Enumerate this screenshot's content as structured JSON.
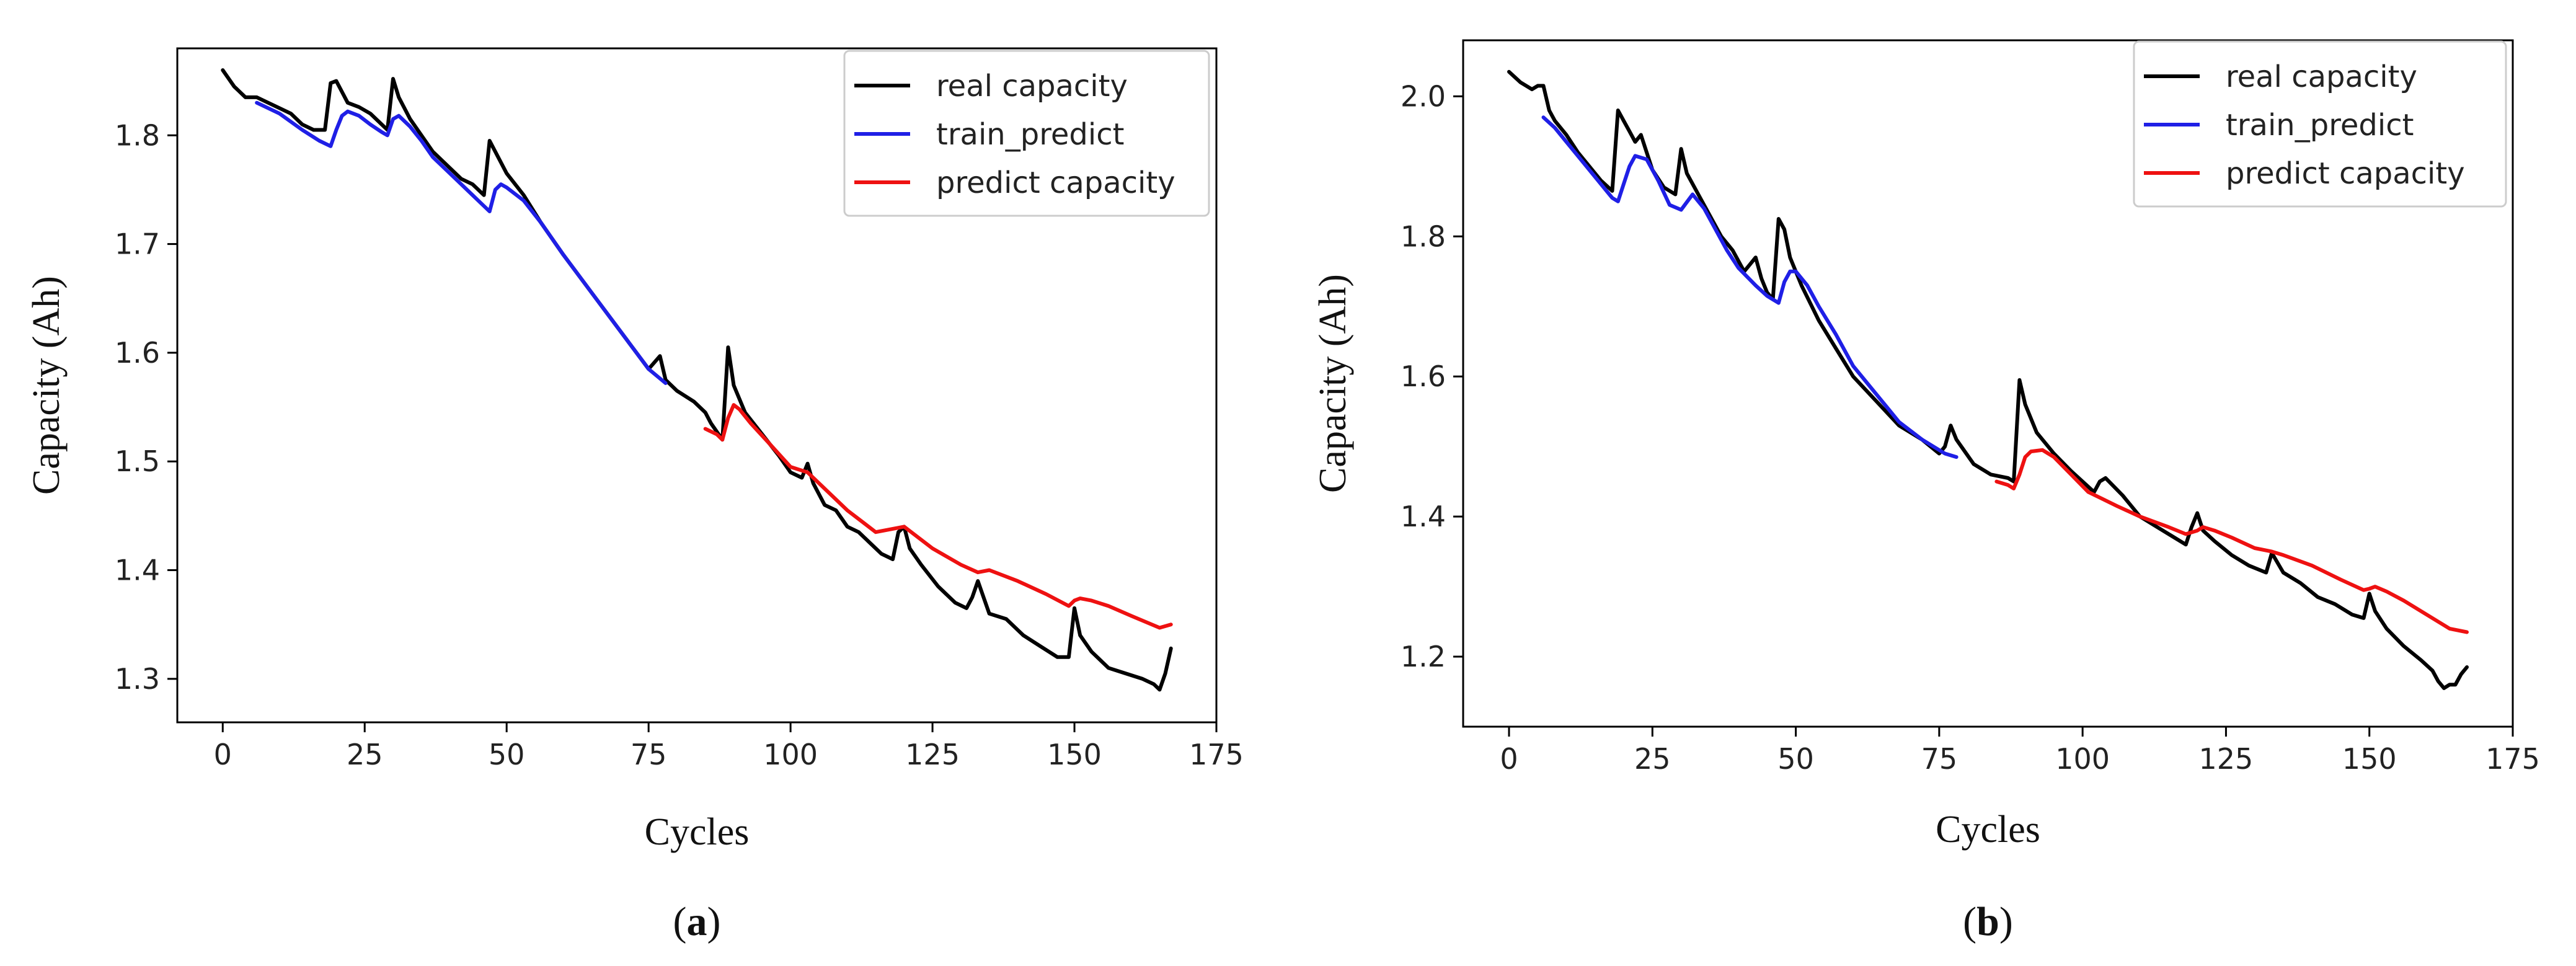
{
  "chart_data": [
    {
      "type": "line",
      "panel": "a",
      "caption_open": "(",
      "caption_letter": "a",
      "caption_close": ")",
      "xlabel": "Cycles",
      "ylabel": "Capacity (Ah)",
      "xlim": [
        -8,
        175
      ],
      "ylim": [
        1.26,
        1.88
      ],
      "xticks": [
        0,
        25,
        50,
        75,
        100,
        125,
        150,
        175
      ],
      "yticks": [
        1.3,
        1.4,
        1.5,
        1.6,
        1.7,
        1.8
      ],
      "ytick_labels": [
        "1.3",
        "1.4",
        "1.5",
        "1.6",
        "1.7",
        "1.8"
      ],
      "legend_position": "top-right",
      "series": [
        {
          "name": "real capacity",
          "color": "#000000",
          "x": [
            0,
            2,
            4,
            6,
            8,
            10,
            12,
            14,
            16,
            18,
            19,
            20,
            21,
            22,
            24,
            26,
            28,
            29,
            30,
            31,
            33,
            35,
            37,
            40,
            42,
            44,
            46,
            47,
            48,
            50,
            53,
            56,
            60,
            65,
            70,
            75,
            77,
            78,
            80,
            83,
            85,
            86,
            88,
            89,
            90,
            92,
            95,
            98,
            100,
            102,
            103,
            104,
            106,
            108,
            110,
            112,
            114,
            116,
            118,
            119,
            120,
            121,
            123,
            126,
            129,
            131,
            132,
            133,
            135,
            138,
            141,
            144,
            147,
            149,
            150,
            151,
            153,
            156,
            159,
            162,
            164,
            165,
            166,
            167
          ],
          "values": [
            1.86,
            1.845,
            1.835,
            1.835,
            1.83,
            1.825,
            1.82,
            1.81,
            1.805,
            1.805,
            1.848,
            1.85,
            1.84,
            1.83,
            1.826,
            1.82,
            1.81,
            1.805,
            1.852,
            1.835,
            1.815,
            1.8,
            1.785,
            1.77,
            1.76,
            1.755,
            1.745,
            1.795,
            1.785,
            1.765,
            1.745,
            1.72,
            1.69,
            1.655,
            1.62,
            1.585,
            1.597,
            1.575,
            1.565,
            1.555,
            1.545,
            1.535,
            1.52,
            1.605,
            1.57,
            1.545,
            1.525,
            1.505,
            1.49,
            1.485,
            1.498,
            1.48,
            1.46,
            1.455,
            1.44,
            1.435,
            1.425,
            1.415,
            1.41,
            1.435,
            1.44,
            1.42,
            1.405,
            1.385,
            1.37,
            1.365,
            1.375,
            1.39,
            1.36,
            1.355,
            1.34,
            1.33,
            1.32,
            1.32,
            1.365,
            1.34,
            1.325,
            1.31,
            1.305,
            1.3,
            1.295,
            1.29,
            1.305,
            1.328
          ]
        },
        {
          "name": "train_predict",
          "color": "#1f1fe6",
          "x": [
            6,
            10,
            14,
            17,
            19,
            20,
            21,
            22,
            24,
            26,
            28,
            29,
            30,
            31,
            33,
            35,
            37,
            40,
            43,
            45,
            47,
            48,
            49,
            50,
            53,
            56,
            60,
            65,
            70,
            75,
            78
          ],
          "values": [
            1.83,
            1.82,
            1.805,
            1.795,
            1.79,
            1.805,
            1.818,
            1.822,
            1.818,
            1.81,
            1.803,
            1.8,
            1.815,
            1.818,
            1.808,
            1.795,
            1.78,
            1.765,
            1.75,
            1.74,
            1.73,
            1.75,
            1.755,
            1.752,
            1.74,
            1.72,
            1.69,
            1.655,
            1.62,
            1.585,
            1.572
          ]
        },
        {
          "name": "predict capacity",
          "color": "#ee1111",
          "x": [
            85,
            87,
            88,
            89,
            90,
            91,
            93,
            96,
            100,
            103,
            106,
            110,
            115,
            120,
            121,
            125,
            130,
            133,
            135,
            140,
            145,
            149,
            150,
            151,
            153,
            156,
            160,
            165,
            167
          ],
          "values": [
            1.53,
            1.525,
            1.52,
            1.54,
            1.552,
            1.548,
            1.535,
            1.518,
            1.495,
            1.49,
            1.475,
            1.455,
            1.435,
            1.44,
            1.436,
            1.42,
            1.405,
            1.398,
            1.4,
            1.39,
            1.378,
            1.367,
            1.372,
            1.374,
            1.372,
            1.367,
            1.358,
            1.347,
            1.35
          ]
        }
      ]
    },
    {
      "type": "line",
      "panel": "b",
      "caption_open": "(",
      "caption_letter": "b",
      "caption_close": ")",
      "xlabel": "Cycles",
      "ylabel": "Capacity (Ah)",
      "xlim": [
        -8,
        175
      ],
      "ylim": [
        1.1,
        2.08
      ],
      "xticks": [
        0,
        25,
        50,
        75,
        100,
        125,
        150,
        175
      ],
      "yticks": [
        1.2,
        1.4,
        1.6,
        1.8,
        2.0
      ],
      "ytick_labels": [
        "1.2",
        "1.4",
        "1.6",
        "1.8",
        "2.0"
      ],
      "legend_position": "top-right",
      "series": [
        {
          "name": "real capacity",
          "color": "#000000",
          "x": [
            0,
            2,
            3,
            4,
            5,
            6,
            7,
            8,
            10,
            12,
            14,
            16,
            18,
            19,
            20,
            21,
            22,
            23,
            24,
            25,
            27,
            29,
            30,
            31,
            33,
            35,
            37,
            39,
            41,
            42,
            43,
            44,
            45,
            46,
            47,
            48,
            49,
            51,
            54,
            57,
            60,
            64,
            68,
            72,
            75,
            76,
            77,
            78,
            81,
            84,
            87,
            88,
            89,
            90,
            92,
            95,
            98,
            100,
            102,
            103,
            104,
            107,
            110,
            113,
            116,
            118,
            119,
            120,
            121,
            123,
            126,
            129,
            132,
            133,
            135,
            138,
            141,
            144,
            147,
            149,
            150,
            151,
            153,
            156,
            159,
            161,
            162,
            163,
            164,
            165,
            166,
            167
          ],
          "values": [
            2.035,
            2.02,
            2.015,
            2.01,
            2.015,
            2.015,
            1.98,
            1.965,
            1.945,
            1.92,
            1.9,
            1.88,
            1.865,
            1.98,
            1.965,
            1.95,
            1.935,
            1.945,
            1.92,
            1.895,
            1.87,
            1.86,
            1.925,
            1.89,
            1.86,
            1.83,
            1.8,
            1.78,
            1.75,
            1.76,
            1.77,
            1.74,
            1.72,
            1.71,
            1.825,
            1.81,
            1.77,
            1.73,
            1.68,
            1.64,
            1.6,
            1.565,
            1.53,
            1.51,
            1.49,
            1.5,
            1.53,
            1.51,
            1.475,
            1.46,
            1.455,
            1.45,
            1.595,
            1.56,
            1.52,
            1.49,
            1.465,
            1.45,
            1.435,
            1.45,
            1.455,
            1.43,
            1.4,
            1.385,
            1.37,
            1.36,
            1.385,
            1.405,
            1.38,
            1.365,
            1.345,
            1.33,
            1.32,
            1.348,
            1.32,
            1.305,
            1.285,
            1.275,
            1.26,
            1.255,
            1.29,
            1.265,
            1.24,
            1.215,
            1.195,
            1.18,
            1.165,
            1.155,
            1.16,
            1.16,
            1.175,
            1.185
          ]
        },
        {
          "name": "train_predict",
          "color": "#1f1fe6",
          "x": [
            6,
            8,
            10,
            13,
            16,
            18,
            19,
            20,
            21,
            22,
            24,
            26,
            28,
            30,
            32,
            34,
            36,
            38,
            40,
            43,
            45,
            47,
            48,
            49,
            50,
            52,
            54,
            57,
            60,
            64,
            68,
            72,
            76,
            78
          ],
          "values": [
            1.97,
            1.955,
            1.935,
            1.905,
            1.875,
            1.855,
            1.85,
            1.875,
            1.9,
            1.915,
            1.91,
            1.88,
            1.845,
            1.838,
            1.86,
            1.84,
            1.81,
            1.78,
            1.755,
            1.73,
            1.715,
            1.705,
            1.735,
            1.75,
            1.75,
            1.73,
            1.7,
            1.66,
            1.615,
            1.575,
            1.535,
            1.51,
            1.49,
            1.485
          ]
        },
        {
          "name": "predict capacity",
          "color": "#ee1111",
          "x": [
            85,
            87,
            88,
            89,
            90,
            91,
            93,
            95,
            98,
            101,
            103,
            106,
            110,
            115,
            118,
            120,
            121,
            123,
            126,
            130,
            133,
            135,
            140,
            145,
            149,
            150,
            151,
            153,
            156,
            160,
            164,
            167
          ],
          "values": [
            1.45,
            1.445,
            1.44,
            1.46,
            1.485,
            1.493,
            1.495,
            1.485,
            1.46,
            1.435,
            1.427,
            1.415,
            1.4,
            1.385,
            1.375,
            1.38,
            1.385,
            1.38,
            1.37,
            1.355,
            1.35,
            1.345,
            1.33,
            1.31,
            1.295,
            1.297,
            1.3,
            1.293,
            1.28,
            1.26,
            1.24,
            1.235
          ]
        }
      ]
    }
  ]
}
